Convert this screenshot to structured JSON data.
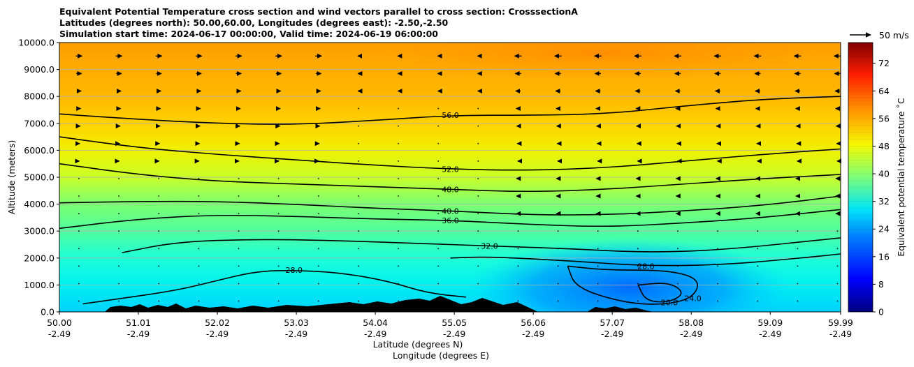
{
  "chart_data": {
    "type": "heatmap",
    "title_lines": [
      "Equivalent Potential Temperature cross section and wind vectors parallel to cross section: CrosssectionA",
      "Latitudes (degrees north): 50.00,60.00, Longitudes (degrees east): -2.50,-2.50",
      "Simulation start time: 2024-06-17 00:00:00, Valid time: 2024-06-19 06:00:00"
    ],
    "ylabel": "Altitude (meters)",
    "xlabel_lat": "Latitude (degrees N)",
    "xlabel_lon": "Longitude (degrees E)",
    "ylim": [
      0,
      10000
    ],
    "xlim": [
      50.0,
      59.99
    ],
    "y_ticks": [
      "0.0",
      "1000.0",
      "2000.0",
      "3000.0",
      "4000.0",
      "5000.0",
      "6000.0",
      "7000.0",
      "8000.0",
      "9000.0",
      "10000.0"
    ],
    "y_tick_values": [
      0,
      1000,
      2000,
      3000,
      4000,
      5000,
      6000,
      7000,
      8000,
      9000,
      10000
    ],
    "x_ticks_lat": [
      "50.00",
      "51.01",
      "52.02",
      "53.03",
      "54.04",
      "55.05",
      "56.06",
      "57.07",
      "58.08",
      "59.09",
      "59.99"
    ],
    "x_ticks_lon": [
      "-2.49",
      "-2.49",
      "-2.49",
      "-2.49",
      "-2.49",
      "-2.49",
      "-2.49",
      "-2.49",
      "-2.49",
      "-2.49",
      "-2.49"
    ],
    "x_tick_values": [
      50.0,
      51.01,
      52.02,
      53.03,
      54.04,
      55.05,
      56.06,
      57.07,
      58.08,
      59.09,
      59.99
    ],
    "grid": "horizontal",
    "colorbar": {
      "label": "Equivalent potential temperature ˚C",
      "range": [
        0,
        78
      ],
      "ticks": [
        "0",
        "8",
        "16",
        "24",
        "32",
        "40",
        "48",
        "56",
        "64",
        "72"
      ],
      "tick_values": [
        0,
        8,
        16,
        24,
        32,
        40,
        48,
        56,
        64,
        72
      ]
    },
    "wind_key": "50 m/s",
    "contours": [
      {
        "level": "56.0",
        "points": [
          [
            50.0,
            7350
          ],
          [
            51.0,
            7150
          ],
          [
            52.0,
            7000
          ],
          [
            53.0,
            6950
          ],
          [
            54.0,
            7100
          ],
          [
            55.0,
            7300
          ],
          [
            56.0,
            7300
          ],
          [
            57.0,
            7350
          ],
          [
            58.0,
            7650
          ],
          [
            59.0,
            7900
          ],
          [
            59.99,
            8000
          ]
        ]
      },
      {
        "level": "52.0",
        "points": [
          [
            50.0,
            6500
          ],
          [
            51.0,
            6100
          ],
          [
            52.0,
            5850
          ],
          [
            53.0,
            5650
          ],
          [
            54.0,
            5450
          ],
          [
            55.0,
            5300
          ],
          [
            56.0,
            5250
          ],
          [
            57.0,
            5350
          ],
          [
            58.0,
            5600
          ],
          [
            59.0,
            5850
          ],
          [
            59.99,
            6050
          ]
        ]
      },
      {
        "level": "48.0",
        "points": [
          [
            50.0,
            5500
          ],
          [
            51.0,
            5100
          ],
          [
            52.0,
            4850
          ],
          [
            53.0,
            4750
          ],
          [
            54.0,
            4650
          ],
          [
            55.0,
            4550
          ],
          [
            56.0,
            4450
          ],
          [
            57.0,
            4550
          ],
          [
            58.0,
            4750
          ],
          [
            59.0,
            4950
          ],
          [
            59.99,
            5100
          ]
        ]
      },
      {
        "level": "40.0",
        "points": [
          [
            50.0,
            4050
          ],
          [
            51.0,
            4100
          ],
          [
            52.0,
            4100
          ],
          [
            53.0,
            4000
          ],
          [
            54.0,
            3850
          ],
          [
            55.0,
            3750
          ],
          [
            56.0,
            3600
          ],
          [
            57.0,
            3600
          ],
          [
            58.0,
            3750
          ],
          [
            59.0,
            3950
          ],
          [
            59.99,
            4300
          ]
        ]
      },
      {
        "level": "36.0",
        "points": [
          [
            50.0,
            3100
          ],
          [
            51.0,
            3450
          ],
          [
            52.0,
            3600
          ],
          [
            53.0,
            3550
          ],
          [
            54.0,
            3450
          ],
          [
            55.0,
            3400
          ],
          [
            56.0,
            3250
          ],
          [
            57.0,
            3150
          ],
          [
            58.0,
            3300
          ],
          [
            59.0,
            3500
          ],
          [
            59.99,
            3800
          ]
        ]
      },
      {
        "level": "32.0",
        "points": [
          [
            50.8,
            2200
          ],
          [
            51.5,
            2600
          ],
          [
            52.5,
            2700
          ],
          [
            53.5,
            2650
          ],
          [
            54.5,
            2550
          ],
          [
            55.5,
            2450
          ],
          [
            56.5,
            2350
          ],
          [
            57.5,
            2200
          ],
          [
            58.5,
            2300
          ],
          [
            59.99,
            2750
          ]
        ]
      },
      {
        "level": "28.0",
        "points": [
          [
            55.0,
            2000
          ],
          [
            55.5,
            2050
          ],
          [
            56.5,
            1900
          ],
          [
            57.5,
            1700
          ],
          [
            58.5,
            1750
          ],
          [
            59.3,
            1950
          ],
          [
            59.99,
            2150
          ]
        ]
      },
      {
        "level": "28.0",
        "points": [
          [
            50.3,
            300
          ],
          [
            50.8,
            500
          ],
          [
            51.5,
            800
          ],
          [
            52.0,
            1150
          ],
          [
            52.5,
            1500
          ],
          [
            53.0,
            1550
          ],
          [
            53.6,
            1450
          ],
          [
            54.2,
            1150
          ],
          [
            54.7,
            700
          ],
          [
            55.2,
            550
          ]
        ]
      },
      {
        "level": "24.0",
        "points": [
          [
            56.5,
            1700
          ],
          [
            57.0,
            1550
          ],
          [
            57.8,
            1550
          ],
          [
            58.2,
            1200
          ],
          [
            58.1,
            500
          ],
          [
            57.7,
            250
          ],
          [
            57.2,
            350
          ],
          [
            56.6,
            900
          ],
          [
            56.5,
            1700
          ]
        ]
      },
      {
        "level": "20.0",
        "points": [
          [
            57.4,
            1000
          ],
          [
            57.8,
            1100
          ],
          [
            58.0,
            700
          ],
          [
            57.8,
            350
          ],
          [
            57.5,
            400
          ],
          [
            57.4,
            1000
          ]
        ]
      }
    ]
  }
}
